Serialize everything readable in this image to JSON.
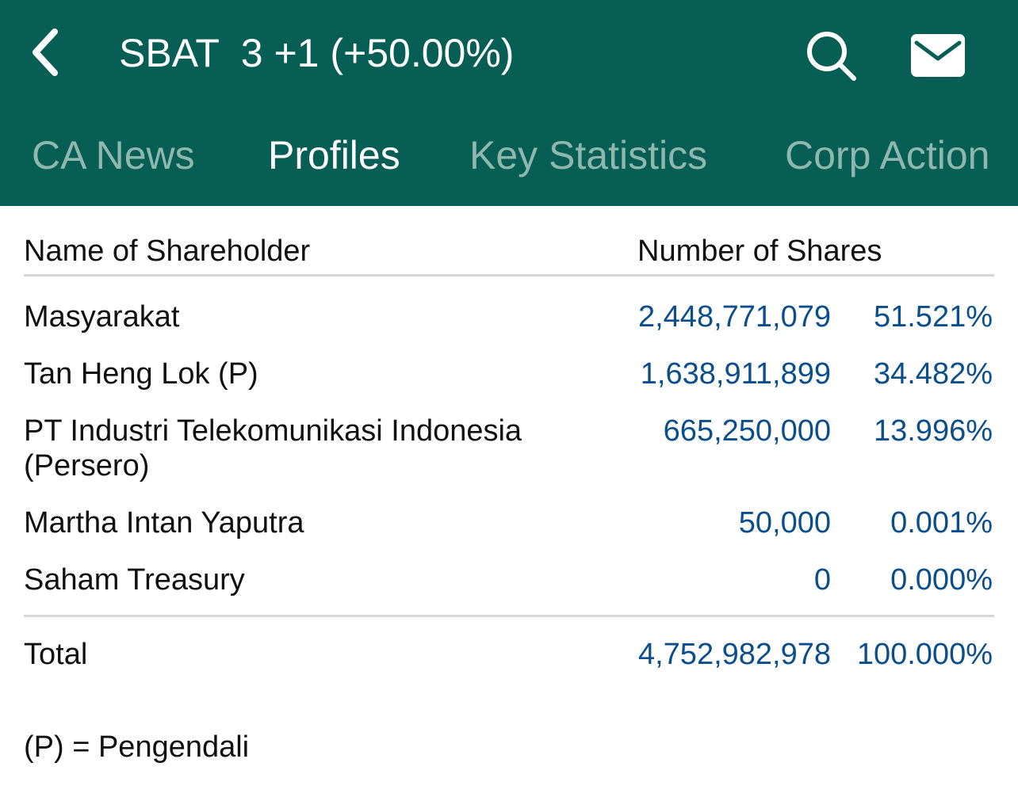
{
  "header": {
    "title": "SBAT  3 +1 (+50.00%)",
    "back_icon": "chevron-left-icon",
    "search_icon": "search-icon",
    "mail_icon": "mail-icon",
    "background_color": "#075e54"
  },
  "tabs": [
    {
      "label": "CA News",
      "active": false
    },
    {
      "label": "Profiles",
      "active": true
    },
    {
      "label": "Key Statistics",
      "active": false
    },
    {
      "label": "Corp Action",
      "active": false
    }
  ],
  "table": {
    "columns": {
      "name": "Name of Shareholder",
      "shares": "Number of Shares"
    },
    "rows": [
      {
        "name": "Masyarakat",
        "shares": "2,448,771,079",
        "pct": "51.521%"
      },
      {
        "name": "Tan Heng Lok (P)",
        "shares": "1,638,911,899",
        "pct": "34.482%"
      },
      {
        "name": "PT Industri Telekomunikasi Indonesia (Persero)",
        "shares": "665,250,000",
        "pct": "13.996%"
      },
      {
        "name": "Martha Intan Yaputra",
        "shares": "50,000",
        "pct": "0.001%"
      },
      {
        "name": "Saham Treasury",
        "shares": "0",
        "pct": "0.000%"
      }
    ],
    "total": {
      "name": "Total",
      "shares": "4,752,982,978",
      "pct": "100.000%"
    },
    "value_color": "#0b4e8c"
  },
  "footnote": "(P) = Pengendali"
}
